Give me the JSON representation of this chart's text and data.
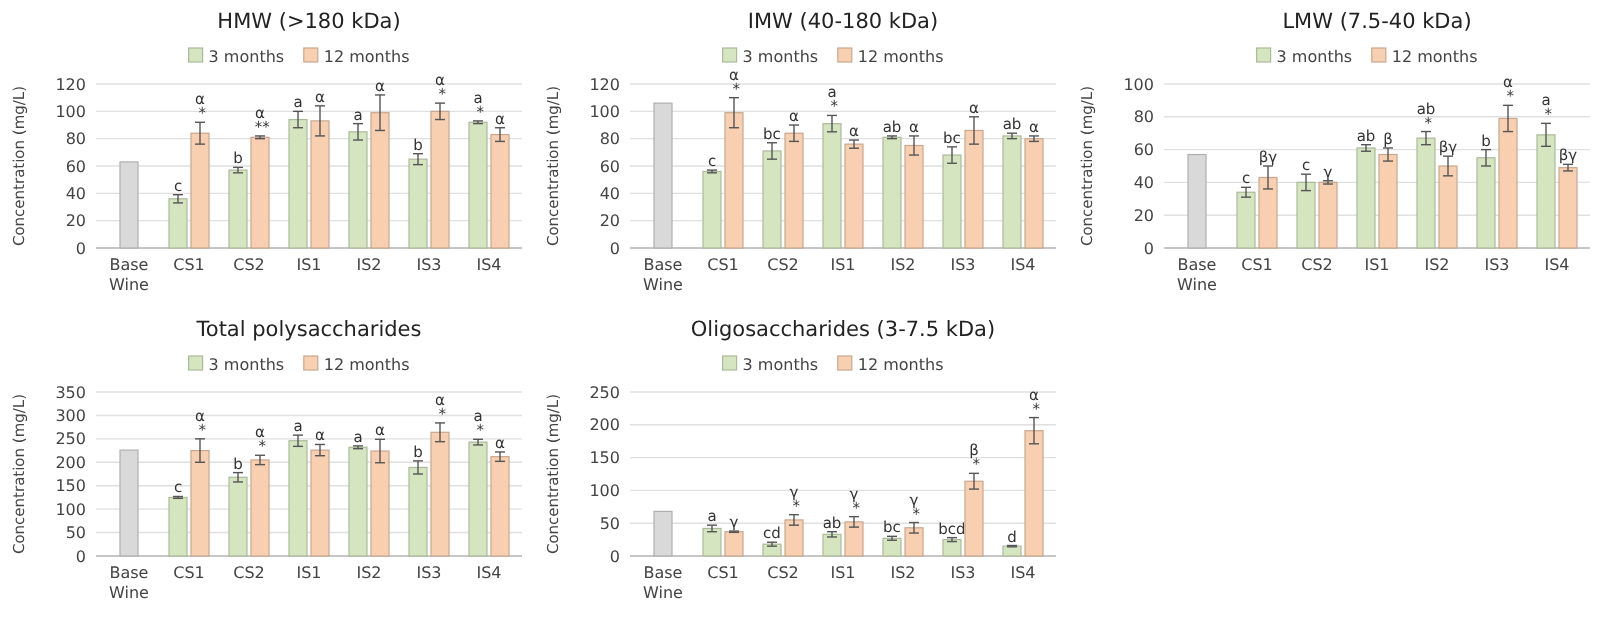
{
  "chart_data": [
    {
      "type": "bar",
      "title": "HMW (>180 kDa)",
      "ylabel": "Concentration (mg/L)",
      "categories": [
        "Base Wine",
        "CS1",
        "CS2",
        "IS1",
        "IS2",
        "IS3",
        "IS4"
      ],
      "ylim": [
        0,
        120
      ],
      "yticks": [
        0,
        20,
        40,
        60,
        80,
        100,
        120
      ],
      "grid": "y",
      "legend": "top",
      "series": [
        {
          "color": "#d9d9d9",
          "values": [
            63,
            null,
            null,
            null,
            null,
            null,
            null
          ]
        },
        {
          "name": "3 months",
          "color": "#d5e5c0",
          "values": [
            null,
            36,
            57,
            94,
            85,
            65,
            92
          ],
          "errors": [
            null,
            3,
            2,
            6,
            6,
            4,
            1
          ],
          "value_labels": [
            null,
            "c",
            "b",
            "a",
            "a",
            "b",
            "a *"
          ]
        },
        {
          "name": "12 months",
          "color": "#f8cfb0",
          "values": [
            null,
            84,
            81,
            93,
            99,
            100,
            83
          ],
          "errors": [
            null,
            8,
            1,
            11,
            13,
            6,
            5
          ],
          "value_labels": [
            null,
            "α *",
            "α **",
            "α",
            "α",
            "α *",
            "α"
          ]
        }
      ]
    },
    {
      "type": "bar",
      "title": "IMW (40-180 kDa)",
      "ylabel": "Concentration (mg/L)",
      "categories": [
        "Base Wine",
        "CS1",
        "CS2",
        "IS1",
        "IS2",
        "IS3",
        "IS4"
      ],
      "ylim": [
        0,
        120
      ],
      "yticks": [
        0,
        20,
        40,
        60,
        80,
        100,
        120
      ],
      "grid": "y",
      "legend": "top",
      "series": [
        {
          "color": "#d9d9d9",
          "values": [
            106,
            null,
            null,
            null,
            null,
            null,
            null
          ]
        },
        {
          "name": "3 months",
          "color": "#d5e5c0",
          "values": [
            null,
            56,
            71,
            91,
            81,
            68,
            82
          ],
          "errors": [
            null,
            1,
            6,
            6,
            1,
            6,
            2
          ],
          "value_labels": [
            null,
            "c",
            "bc",
            "a *",
            "ab",
            "bc",
            "ab"
          ]
        },
        {
          "name": "12 months",
          "color": "#f8cfb0",
          "values": [
            null,
            99,
            84,
            76,
            75,
            86,
            80
          ],
          "errors": [
            null,
            11,
            6,
            3,
            7,
            10,
            2
          ],
          "value_labels": [
            null,
            "α *",
            "α",
            "α",
            "α",
            "α",
            "α"
          ]
        }
      ]
    },
    {
      "type": "bar",
      "title": "LMW (7.5-40 kDa)",
      "ylabel": "Concentration (mg/L)",
      "categories": [
        "Base Wine",
        "CS1",
        "CS2",
        "IS1",
        "IS2",
        "IS3",
        "IS4"
      ],
      "ylim": [
        0,
        100
      ],
      "yticks": [
        0,
        20,
        40,
        60,
        80,
        100
      ],
      "grid": "y",
      "legend": "top",
      "series": [
        {
          "color": "#d9d9d9",
          "values": [
            57,
            null,
            null,
            null,
            null,
            null,
            null
          ]
        },
        {
          "name": "3 months",
          "color": "#d5e5c0",
          "values": [
            null,
            34,
            40,
            61,
            67,
            55,
            69
          ],
          "errors": [
            null,
            3,
            5,
            2,
            4,
            5,
            7
          ],
          "value_labels": [
            null,
            "c",
            "c",
            "ab",
            "ab *",
            "b",
            "a *"
          ]
        },
        {
          "name": "12 months",
          "color": "#f8cfb0",
          "values": [
            null,
            43,
            40,
            57,
            50,
            79,
            49
          ],
          "errors": [
            null,
            7,
            1,
            4,
            6,
            8,
            2
          ],
          "value_labels": [
            null,
            "βγ",
            "γ",
            "β",
            "βγ",
            "α *",
            "βγ"
          ]
        }
      ]
    },
    {
      "type": "bar",
      "title": "Total polysaccharides",
      "ylabel": "Concentration (mg/L)",
      "categories": [
        "Base Wine",
        "CS1",
        "CS2",
        "IS1",
        "IS2",
        "IS3",
        "IS4"
      ],
      "ylim": [
        0,
        350
      ],
      "yticks": [
        0,
        50,
        100,
        150,
        200,
        250,
        300,
        350
      ],
      "grid": "y",
      "legend": "top",
      "series": [
        {
          "color": "#d9d9d9",
          "values": [
            226,
            null,
            null,
            null,
            null,
            null,
            null
          ]
        },
        {
          "name": "3 months",
          "color": "#d5e5c0",
          "values": [
            null,
            125,
            168,
            246,
            232,
            189,
            243
          ],
          "errors": [
            null,
            2,
            10,
            12,
            3,
            14,
            6
          ],
          "value_labels": [
            null,
            "c",
            "b",
            "a",
            "a",
            "b",
            "a *"
          ]
        },
        {
          "name": "12 months",
          "color": "#f8cfb0",
          "values": [
            null,
            225,
            205,
            226,
            224,
            264,
            212
          ],
          "errors": [
            null,
            25,
            10,
            12,
            25,
            20,
            10
          ],
          "value_labels": [
            null,
            "α *",
            "α *",
            "α",
            "α",
            "α *",
            "α"
          ]
        }
      ]
    },
    {
      "type": "bar",
      "title": "Oligosaccharides (3-7.5 kDa)",
      "ylabel": "Concentration (mg/L)",
      "categories": [
        "Base Wine",
        "CS1",
        "CS2",
        "IS1",
        "IS2",
        "IS3",
        "IS4"
      ],
      "ylim": [
        0,
        250
      ],
      "yticks": [
        0,
        50,
        100,
        150,
        200,
        250
      ],
      "grid": "y",
      "legend": "top",
      "series": [
        {
          "color": "#d9d9d9",
          "values": [
            68,
            null,
            null,
            null,
            null,
            null,
            null
          ]
        },
        {
          "name": "3 months",
          "color": "#d5e5c0",
          "values": [
            null,
            42,
            18,
            33,
            27,
            25,
            15
          ],
          "errors": [
            null,
            5,
            3,
            4,
            3,
            3,
            1
          ],
          "value_labels": [
            null,
            "a",
            "cd",
            "ab",
            "bc",
            "bcd",
            "d"
          ]
        },
        {
          "name": "12 months",
          "color": "#f8cfb0",
          "values": [
            null,
            37,
            55,
            52,
            43,
            114,
            191
          ],
          "errors": [
            null,
            1,
            8,
            8,
            8,
            12,
            20
          ],
          "value_labels": [
            null,
            "γ",
            "γ *",
            "γ *",
            "γ *",
            "β *",
            "α *"
          ]
        }
      ]
    }
  ]
}
